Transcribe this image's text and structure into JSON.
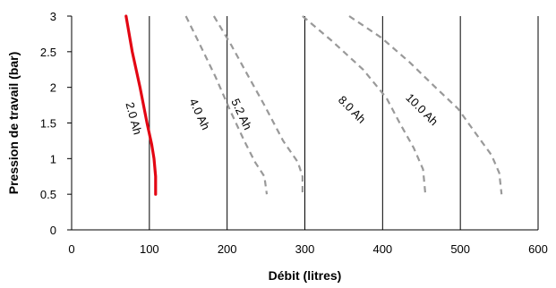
{
  "chart_data": {
    "type": "line",
    "xlabel": "Débit (litres)",
    "ylabel": "Pression de travail (bar)",
    "xlim": [
      0,
      600
    ],
    "ylim": [
      0,
      3
    ],
    "x_ticks": [
      "0",
      "100",
      "200",
      "300",
      "400",
      "500",
      "600"
    ],
    "y_ticks": [
      "0",
      "0.5",
      "1",
      "1.5",
      "2",
      "2.5",
      "3"
    ],
    "grid": "vertical",
    "series": [
      {
        "name": "2.0 Ah",
        "color": "#e30613",
        "style": "solid",
        "points": [
          [
            70,
            3.0
          ],
          [
            78,
            2.5
          ],
          [
            88,
            2.0
          ],
          [
            97,
            1.5
          ],
          [
            103,
            1.2
          ],
          [
            106,
            1.0
          ],
          [
            108,
            0.75
          ],
          [
            108,
            0.5
          ]
        ]
      },
      {
        "name": "4.0 Ah",
        "color": "#999999",
        "style": "dashed",
        "points": [
          [
            147,
            3.0
          ],
          [
            165,
            2.6
          ],
          [
            185,
            2.15
          ],
          [
            205,
            1.65
          ],
          [
            222,
            1.25
          ],
          [
            236,
            0.95
          ],
          [
            248,
            0.75
          ],
          [
            251,
            0.5
          ]
        ]
      },
      {
        "name": "5.2 Ah",
        "color": "#999999",
        "style": "dashed",
        "points": [
          [
            183,
            3.0
          ],
          [
            205,
            2.6
          ],
          [
            225,
            2.2
          ],
          [
            248,
            1.75
          ],
          [
            272,
            1.25
          ],
          [
            291,
            0.95
          ],
          [
            297,
            0.75
          ],
          [
            297,
            0.5
          ]
        ]
      },
      {
        "name": "8.0 Ah",
        "color": "#999999",
        "style": "dashed",
        "points": [
          [
            297,
            3.0
          ],
          [
            335,
            2.65
          ],
          [
            375,
            2.25
          ],
          [
            405,
            1.85
          ],
          [
            422,
            1.5
          ],
          [
            440,
            1.15
          ],
          [
            452,
            0.85
          ],
          [
            455,
            0.5
          ]
        ]
      },
      {
        "name": "10.0 Ah",
        "color": "#999999",
        "style": "dashed",
        "points": [
          [
            357,
            3.0
          ],
          [
            398,
            2.7
          ],
          [
            435,
            2.35
          ],
          [
            468,
            2.0
          ],
          [
            497,
            1.7
          ],
          [
            520,
            1.35
          ],
          [
            540,
            1.05
          ],
          [
            550,
            0.8
          ],
          [
            553,
            0.5
          ]
        ]
      }
    ],
    "annotations": [
      {
        "text": "2.0 Ah",
        "x": 75,
        "y": 1.55,
        "angle": 75
      },
      {
        "text": "4.0 Ah",
        "x": 160,
        "y": 1.6,
        "angle": 65
      },
      {
        "text": "5.2 Ah",
        "x": 214,
        "y": 1.6,
        "angle": 65
      },
      {
        "text": "8.0 Ah",
        "x": 357,
        "y": 1.65,
        "angle": 45
      },
      {
        "text": "10.0 Ah",
        "x": 447,
        "y": 1.65,
        "angle": 45
      }
    ]
  }
}
